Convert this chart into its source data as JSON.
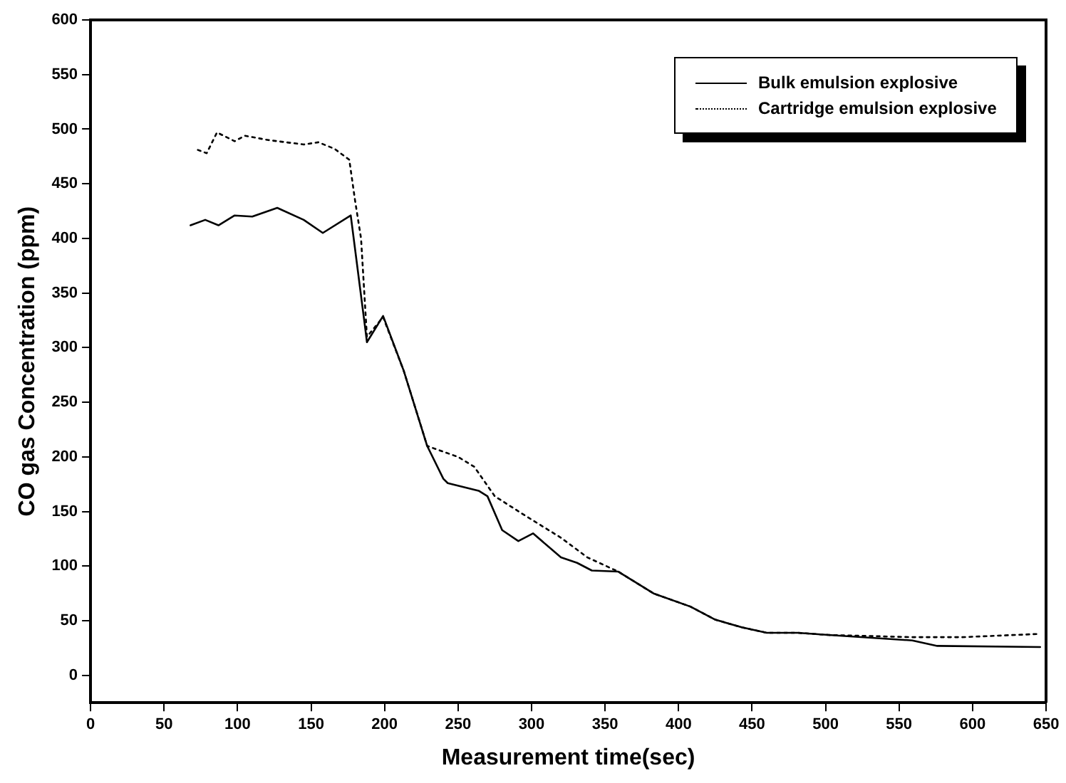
{
  "chart_data": {
    "type": "line",
    "xlabel": "Measurement time(sec)",
    "ylabel": "CO gas Concentration (ppm)",
    "xlim": [
      0,
      650
    ],
    "xticks": [
      0,
      50,
      100,
      150,
      200,
      250,
      300,
      350,
      400,
      450,
      500,
      550,
      600,
      650
    ],
    "ylim": [
      -25,
      600
    ],
    "yticks": [
      0,
      50,
      100,
      150,
      200,
      250,
      300,
      350,
      400,
      450,
      500,
      550,
      600
    ],
    "grid": false,
    "legend": "top right",
    "marker": "none",
    "series": [
      {
        "name": "Bulk emulsion explosive",
        "color": "#000000",
        "line_style": "solid",
        "x": [
          68,
          78,
          87,
          98,
          110,
          127,
          145,
          158,
          177,
          187,
          188,
          199,
          213,
          229,
          240,
          243,
          264,
          270,
          280,
          291,
          301,
          320,
          331,
          341,
          359,
          383,
          408,
          425,
          443,
          460,
          481,
          502,
          559,
          576,
          646
        ],
        "values": [
          412,
          417,
          412,
          421,
          420,
          428,
          417,
          405,
          421,
          316,
          305,
          329,
          279,
          210,
          180,
          176,
          169,
          164,
          133,
          123,
          130,
          108,
          103,
          96,
          95,
          75,
          63,
          51,
          44,
          39,
          39,
          37,
          32,
          27,
          26
        ]
      },
      {
        "name": "Cartridge emulsion explosive",
        "color": "#000000",
        "line_style": "dotted",
        "x": [
          73,
          79,
          86,
          98,
          105,
          121,
          145,
          155,
          166,
          176,
          180,
          184,
          188,
          199,
          213,
          229,
          250,
          261,
          275,
          296,
          320,
          338,
          359,
          383,
          408,
          425,
          443,
          460,
          481,
          502,
          559,
          593,
          646
        ],
        "values": [
          481,
          478,
          497,
          489,
          494,
          490,
          486,
          488,
          482,
          472,
          434,
          400,
          310,
          328,
          279,
          210,
          200,
          191,
          164,
          146,
          126,
          108,
          95,
          75,
          63,
          51,
          44,
          39,
          39,
          37,
          35,
          35,
          38
        ]
      }
    ]
  }
}
